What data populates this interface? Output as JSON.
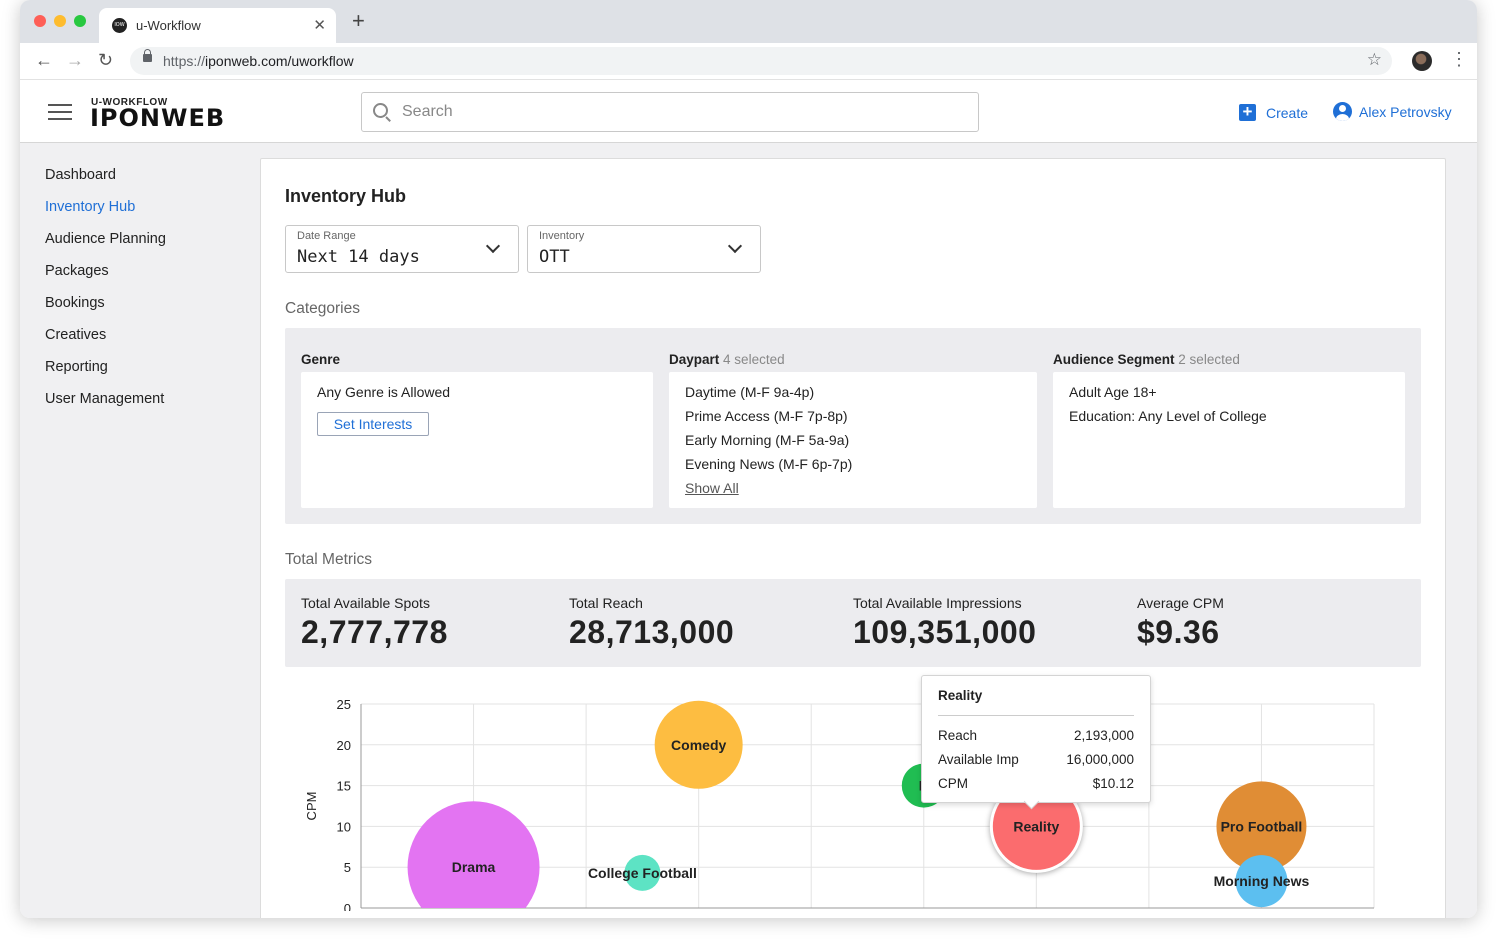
{
  "browser": {
    "tab_title": "u-Workflow",
    "tab_favicon_text": "IOW",
    "url_scheme": "https://",
    "url_rest": "iponweb.com/uworkflow"
  },
  "header": {
    "logo_small": "U-WORKFLOW",
    "logo_big": "IPONWEB",
    "search_placeholder": "Search",
    "create_label": "Create",
    "user_name": "Alex Petrovsky"
  },
  "sidebar": {
    "items": [
      {
        "label": "Dashboard"
      },
      {
        "label": "Inventory Hub",
        "active": true
      },
      {
        "label": "Audience Planning"
      },
      {
        "label": "Packages"
      },
      {
        "label": "Bookings"
      },
      {
        "label": "Creatives"
      },
      {
        "label": "Reporting"
      },
      {
        "label": "User Management"
      }
    ]
  },
  "page": {
    "title": "Inventory Hub",
    "filters": {
      "date_range": {
        "label": "Date Range",
        "value": "Next 14 days"
      },
      "inventory": {
        "label": "Inventory",
        "value": "OTT"
      }
    },
    "categories_title": "Categories",
    "genre": {
      "title": "Genre",
      "value": "Any Genre is Allowed",
      "button": "Set Interests"
    },
    "daypart": {
      "title": "Daypart",
      "selected": "4 selected",
      "items": [
        "Daytime (M-F 9a-4p)",
        "Prime Access (M-F 7p-8p)",
        "Early Morning (M-F 5a-9a)",
        "Evening News (M-F 6p-7p)"
      ],
      "show_all": "Show All"
    },
    "audience": {
      "title": "Audience Segment",
      "selected": "2 selected",
      "items": [
        "Adult Age 18+",
        "Education: Any Level of College"
      ]
    },
    "metrics_title": "Total Metrics",
    "metrics": [
      {
        "label": "Total Available Spots",
        "value": "2,777,778"
      },
      {
        "label": "Total Reach",
        "value": "28,713,000"
      },
      {
        "label": "Total Available Impressions",
        "value": "109,351,000"
      },
      {
        "label": "Average CPM",
        "value": "$9.36"
      }
    ],
    "tooltip": {
      "title": "Reality",
      "rows": [
        {
          "label": "Reach",
          "value": "2,193,000"
        },
        {
          "label": "Available Imp",
          "value": "16,000,000"
        },
        {
          "label": "CPM",
          "value": "$10.12"
        }
      ]
    }
  },
  "chart_data": {
    "type": "scatter",
    "ylabel": "CPM",
    "xlabel": "",
    "ylim": [
      0,
      25
    ],
    "yticks": [
      0,
      5,
      10,
      15,
      20,
      25
    ],
    "x_grid_count": 9,
    "bubbles": [
      {
        "name": "Drama",
        "x": 1,
        "y": 5,
        "r": 66,
        "color": "#e374f2",
        "label": "Drama"
      },
      {
        "name": "College Football",
        "x": 2.5,
        "y": 4.3,
        "r": 18,
        "color": "#5de3c4",
        "label": "College Football"
      },
      {
        "name": "Comedy",
        "x": 3,
        "y": 20,
        "r": 44,
        "color": "#fdbd41",
        "label": "Comedy"
      },
      {
        "name": "K",
        "x": 5,
        "y": 15,
        "r": 22,
        "color": "#20bd52",
        "label": "K"
      },
      {
        "name": "Reality",
        "x": 6,
        "y": 10,
        "r": 45,
        "color": "#fb6c6e",
        "label": "Reality"
      },
      {
        "name": "Pro Football",
        "x": 8,
        "y": 10,
        "r": 45,
        "color": "#e08d35",
        "label": "Pro Football"
      },
      {
        "name": "Morning News",
        "x": 8,
        "y": 3.3,
        "r": 26,
        "color": "#5cbff0",
        "label": "Morning News"
      }
    ],
    "colors": {
      "grid": "#e3e3e3",
      "axis": "#999999"
    }
  }
}
